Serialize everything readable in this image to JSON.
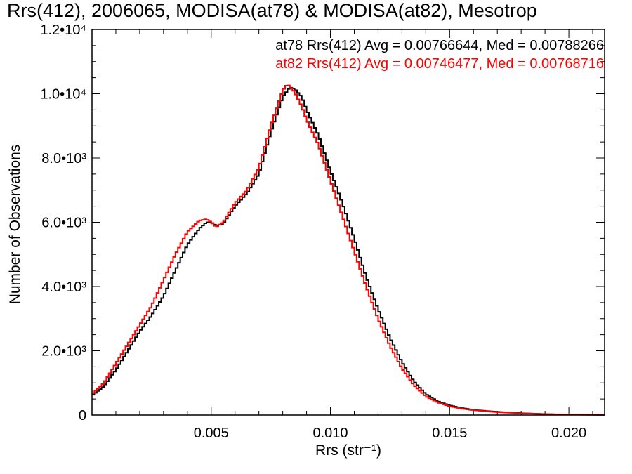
{
  "chart_data": {
    "type": "line",
    "title": "Rrs(412), 2006065, MODISA(at78) & MODISA(at82), Mesotrop",
    "xlabel": "Rrs (str⁻¹)",
    "ylabel": "Number of Observations",
    "xlim": [
      0.0,
      0.0215
    ],
    "ylim": [
      0,
      12000
    ],
    "x_ticks": [
      {
        "value": 0.005,
        "label": "0.005"
      },
      {
        "value": 0.01,
        "label": "0.010"
      },
      {
        "value": 0.015,
        "label": "0.015"
      },
      {
        "value": 0.02,
        "label": "0.020"
      }
    ],
    "y_ticks": [
      {
        "value": 0,
        "label": "0"
      },
      {
        "value": 2000,
        "label": "2.0•10³"
      },
      {
        "value": 4000,
        "label": "4.0•10³"
      },
      {
        "value": 6000,
        "label": "6.0•10³"
      },
      {
        "value": 8000,
        "label": "8.0•10³"
      },
      {
        "value": 10000,
        "label": "1.0•10⁴"
      },
      {
        "value": 12000,
        "label": "1.2•10⁴"
      }
    ],
    "grid": false,
    "legend_position": "top-right",
    "series": [
      {
        "name": "at78 Rrs(412) Avg = 0.00766644, Med = 0.00788266",
        "color": "#000000",
        "x": [
          0.0,
          0.0005,
          0.001,
          0.0015,
          0.002,
          0.0025,
          0.003,
          0.0035,
          0.004,
          0.0045,
          0.0048,
          0.005,
          0.0052,
          0.0055,
          0.006,
          0.0065,
          0.007,
          0.0075,
          0.008,
          0.0083,
          0.0085,
          0.0088,
          0.009,
          0.0095,
          0.01,
          0.0105,
          0.011,
          0.0115,
          0.012,
          0.0125,
          0.013,
          0.0135,
          0.014,
          0.0145,
          0.015,
          0.0155,
          0.016,
          0.017,
          0.018,
          0.019,
          0.02,
          0.0215
        ],
        "y": [
          600,
          900,
          1400,
          2000,
          2600,
          3100,
          3700,
          4500,
          5300,
          5800,
          6000,
          6000,
          5900,
          5950,
          6500,
          6900,
          7500,
          8800,
          9900,
          10200,
          10150,
          9900,
          9500,
          8700,
          7600,
          6600,
          5500,
          4300,
          3300,
          2400,
          1650,
          1050,
          650,
          430,
          300,
          220,
          160,
          100,
          60,
          30,
          15,
          5
        ]
      },
      {
        "name": "at82 Rrs(412) Avg = 0.00746477, Med = 0.00768716",
        "color": "#ff0000",
        "x": [
          0.0,
          0.0005,
          0.001,
          0.0015,
          0.002,
          0.0025,
          0.003,
          0.0035,
          0.004,
          0.0045,
          0.0048,
          0.005,
          0.0052,
          0.0055,
          0.006,
          0.0065,
          0.007,
          0.0075,
          0.008,
          0.0082,
          0.0085,
          0.0088,
          0.009,
          0.0095,
          0.01,
          0.0105,
          0.011,
          0.0115,
          0.012,
          0.0125,
          0.013,
          0.0135,
          0.014,
          0.0145,
          0.015,
          0.0155,
          0.016,
          0.017,
          0.018,
          0.019,
          0.02,
          0.0215
        ],
        "y": [
          650,
          1000,
          1600,
          2200,
          2800,
          3400,
          4200,
          5000,
          5700,
          6050,
          6100,
          6000,
          5850,
          6000,
          6600,
          7000,
          7700,
          9000,
          10100,
          10300,
          10050,
          9600,
          9200,
          8400,
          7300,
          6200,
          5100,
          4000,
          3000,
          2150,
          1450,
          930,
          580,
          390,
          270,
          200,
          150,
          90,
          55,
          28,
          12,
          4
        ]
      }
    ]
  }
}
